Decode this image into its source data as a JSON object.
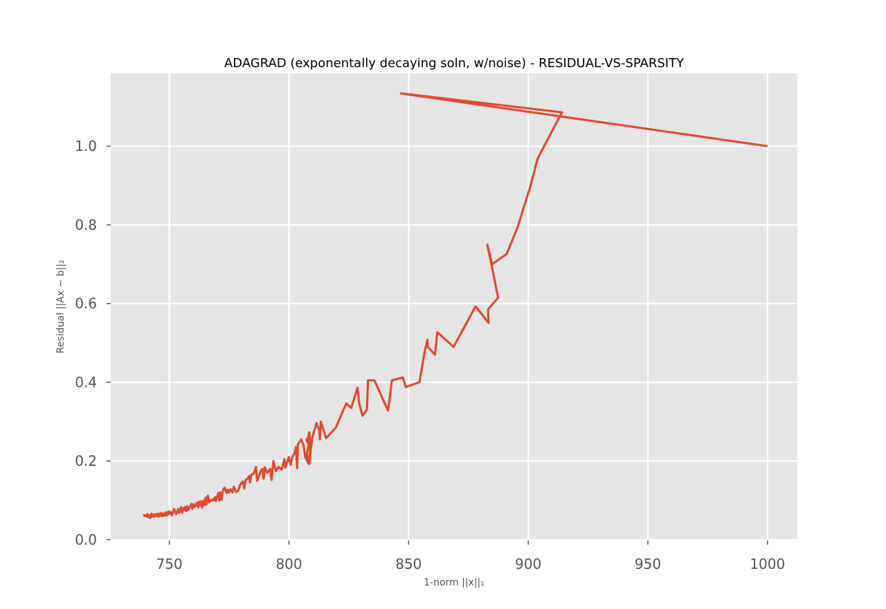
{
  "chart_data": {
    "type": "line",
    "title": "ADAGRAD (exponentally decaying soln, w/noise) - RESIDUAL-VS-SPARSITY",
    "xlabel": "1-norm ||x||₁",
    "ylabel": "Residual ||Ax − b||₂",
    "xlim": [
      725.5,
      1012.5
    ],
    "ylim": [
      -0.002,
      1.185
    ],
    "xticks": [
      750,
      800,
      850,
      900,
      950,
      1000
    ],
    "yticks": [
      0.0,
      0.2,
      0.4,
      0.6,
      0.8,
      1.0
    ],
    "xtick_labels": [
      "750",
      "800",
      "850",
      "900",
      "950",
      "1000"
    ],
    "ytick_labels": [
      "0.0",
      "0.2",
      "0.4",
      "0.6",
      "0.8",
      "1.0"
    ],
    "grid": true,
    "background": "#E5E5E5",
    "line_color": "#E24A33",
    "series": [
      {
        "x": [
          1000,
          846.8,
          914.1,
          903.9,
          901.0,
          895.5,
          891.0,
          884.9,
          882.9,
          884.6,
          887.4,
          883.2,
          883.4,
          878.0,
          868.8,
          862.0,
          861.0,
          858.0,
          857.9,
          856.8,
          854.5,
          848.8,
          847.6,
          843.0,
          842.5,
          841.4,
          835.7,
          833.0,
          832.6,
          830.7,
          829.4,
          828.6,
          826.0,
          824.0,
          822.6,
          819.6,
          815.5,
          813.3,
          812.9,
          812.7,
          811.5,
          809.8,
          809.1,
          808.8,
          808.6,
          808.9,
          808.5,
          808.2,
          807.7,
          807.3,
          808.7,
          807.5,
          808.4,
          806.8,
          806.1,
          805.1,
          803.7,
          803.4,
          802.9,
          802.3,
          801.4,
          800.7,
          799.9,
          798.4,
          798.1,
          796.9,
          795.7,
          794.9,
          794.5,
          793.5,
          792.7,
          792.1,
          790.9,
          789.9,
          789.4,
          788.8,
          788.3,
          787.6,
          786.7,
          786.2,
          785.3,
          784.3,
          783.7,
          783.4,
          782.7,
          781.9,
          781.3,
          780.7,
          779.4,
          779.1,
          778.7,
          777.8,
          776.9,
          776.4,
          775.6,
          774.9,
          774.4,
          773.9,
          773.1,
          772.6,
          772.2,
          771.8,
          771.3,
          770.9,
          770.5,
          770.1,
          769.8,
          769.4,
          769.1,
          768.8,
          768.5,
          768.2,
          767.9,
          767.5,
          767.1,
          766.6,
          766.1,
          765.8,
          765.5,
          765.1,
          764.8,
          764.4,
          764.1,
          763.7,
          763.3,
          762.9,
          762.5,
          762.1,
          761.7,
          761.3,
          760.9,
          760.5,
          760.1,
          759.6,
          759.2,
          758.8,
          758.4,
          757.9,
          757.5,
          757.1,
          756.6,
          756.2,
          755.8,
          755.4,
          754.9,
          754.5,
          754.1,
          753.7,
          753.3,
          752.8,
          752.3,
          751.9,
          751.5,
          751.1,
          750.7,
          750.3,
          749.9,
          749.5,
          749.1,
          748.7,
          748.3,
          747.9,
          747.5,
          747.1,
          746.7,
          746.3,
          745.9,
          745.5,
          745.1,
          744.8,
          744.5,
          744.1,
          743.7,
          743.3,
          742.9,
          742.5,
          742.1,
          741.7,
          741.3,
          740.9,
          740.6,
          740.3,
          740.0,
          739.7,
          739.5,
          739.3,
          739.1
        ],
        "y": [
          1.0,
          1.134,
          1.086,
          0.968,
          0.9,
          0.793,
          0.726,
          0.7,
          0.75,
          0.7,
          0.615,
          0.585,
          0.551,
          0.593,
          0.49,
          0.527,
          0.47,
          0.49,
          0.508,
          0.48,
          0.4,
          0.388,
          0.412,
          0.405,
          0.38,
          0.328,
          0.405,
          0.405,
          0.33,
          0.315,
          0.345,
          0.386,
          0.335,
          0.346,
          0.328,
          0.285,
          0.258,
          0.3,
          0.255,
          0.278,
          0.296,
          0.262,
          0.23,
          0.21,
          0.195,
          0.242,
          0.273,
          0.265,
          0.248,
          0.255,
          0.26,
          0.218,
          0.192,
          0.21,
          0.24,
          0.255,
          0.242,
          0.182,
          0.235,
          0.22,
          0.21,
          0.19,
          0.21,
          0.183,
          0.205,
          0.178,
          0.185,
          0.178,
          0.175,
          0.2,
          0.152,
          0.18,
          0.17,
          0.184,
          0.155,
          0.18,
          0.175,
          0.165,
          0.15,
          0.185,
          0.168,
          0.165,
          0.145,
          0.162,
          0.155,
          0.152,
          0.13,
          0.148,
          0.138,
          0.13,
          0.124,
          0.121,
          0.135,
          0.12,
          0.128,
          0.12,
          0.127,
          0.119,
          0.132,
          0.128,
          0.12,
          0.102,
          0.12,
          0.1,
          0.119,
          0.112,
          0.108,
          0.098,
          0.108,
          0.1,
          0.1,
          0.103,
          0.1,
          0.099,
          0.1,
          0.095,
          0.112,
          0.1,
          0.09,
          0.107,
          0.088,
          0.1,
          0.093,
          0.082,
          0.098,
          0.088,
          0.097,
          0.082,
          0.094,
          0.092,
          0.085,
          0.084,
          0.09,
          0.078,
          0.091,
          0.085,
          0.081,
          0.076,
          0.085,
          0.073,
          0.083,
          0.076,
          0.08,
          0.068,
          0.083,
          0.073,
          0.068,
          0.078,
          0.07,
          0.065,
          0.074,
          0.078,
          0.068,
          0.062,
          0.07,
          0.066,
          0.072,
          0.065,
          0.07,
          0.061,
          0.069,
          0.064,
          0.06,
          0.067,
          0.06,
          0.068,
          0.064,
          0.058,
          0.066,
          0.062,
          0.06,
          0.065,
          0.058,
          0.064,
          0.059,
          0.066,
          0.055,
          0.062,
          0.057,
          0.065,
          0.059,
          0.062,
          0.06,
          0.062,
          0.061,
          0.062,
          0.061
        ]
      }
    ]
  }
}
